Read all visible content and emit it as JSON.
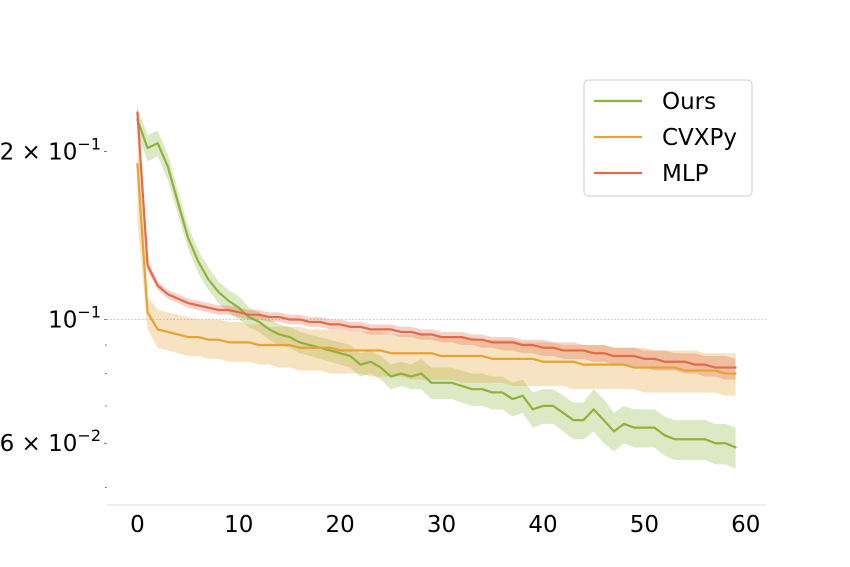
{
  "chart_data": {
    "type": "line",
    "title": "",
    "xlabel": "",
    "ylabel": "",
    "y_scale": "log",
    "xlim": [
      -3,
      62
    ],
    "ylim": [
      0.0465,
      0.26
    ],
    "grid": "dotted line at 10^-1 only",
    "legend_placement": "top-right",
    "x_ticks": [
      0,
      10,
      20,
      30,
      40,
      50,
      60
    ],
    "x_tick_labels": [
      "0",
      "10",
      "20",
      "30",
      "40",
      "50",
      "60"
    ],
    "y_ticks_major": [
      0.06,
      0.1,
      0.2
    ],
    "y_tick_labels": [
      {
        "mantissa": "6 × 10",
        "exponent": "−2"
      },
      {
        "mantissa": "10",
        "exponent": "−1"
      },
      {
        "mantissa": "2 × 10",
        "exponent": "−1"
      }
    ],
    "y_ticks_minor": [
      0.05,
      0.07,
      0.08,
      0.09
    ],
    "series": [
      {
        "name": "Ours",
        "color": "#8db33a",
        "x": [
          0,
          1,
          2,
          3,
          4,
          5,
          6,
          7,
          8,
          9,
          10,
          11,
          12,
          13,
          14,
          15,
          16,
          17,
          18,
          19,
          20,
          21,
          22,
          23,
          24,
          25,
          26,
          27,
          28,
          29,
          30,
          31,
          32,
          33,
          34,
          35,
          36,
          37,
          38,
          39,
          40,
          41,
          42,
          43,
          44,
          45,
          46,
          47,
          48,
          49,
          50,
          51,
          52,
          53,
          54,
          55,
          56,
          57,
          58,
          59
        ],
        "mean": [
          0.228,
          0.203,
          0.207,
          0.188,
          0.162,
          0.14,
          0.127,
          0.118,
          0.112,
          0.108,
          0.105,
          0.101,
          0.099,
          0.096,
          0.094,
          0.093,
          0.091,
          0.09,
          0.089,
          0.088,
          0.087,
          0.086,
          0.083,
          0.084,
          0.082,
          0.079,
          0.08,
          0.079,
          0.08,
          0.077,
          0.077,
          0.077,
          0.076,
          0.075,
          0.075,
          0.074,
          0.074,
          0.072,
          0.073,
          0.069,
          0.07,
          0.07,
          0.068,
          0.066,
          0.066,
          0.069,
          0.066,
          0.063,
          0.065,
          0.064,
          0.064,
          0.064,
          0.062,
          0.061,
          0.061,
          0.061,
          0.061,
          0.06,
          0.06,
          0.059
        ],
        "lower": [
          0.215,
          0.192,
          0.196,
          0.178,
          0.154,
          0.134,
          0.121,
          0.113,
          0.107,
          0.103,
          0.1,
          0.097,
          0.095,
          0.092,
          0.09,
          0.089,
          0.087,
          0.086,
          0.085,
          0.084,
          0.083,
          0.082,
          0.079,
          0.08,
          0.078,
          0.075,
          0.076,
          0.075,
          0.075,
          0.072,
          0.072,
          0.072,
          0.071,
          0.07,
          0.07,
          0.069,
          0.069,
          0.067,
          0.068,
          0.064,
          0.065,
          0.065,
          0.063,
          0.061,
          0.061,
          0.063,
          0.06,
          0.058,
          0.06,
          0.059,
          0.059,
          0.059,
          0.057,
          0.056,
          0.056,
          0.056,
          0.056,
          0.055,
          0.055,
          0.054
        ],
        "upper": [
          0.24,
          0.214,
          0.218,
          0.198,
          0.17,
          0.147,
          0.133,
          0.124,
          0.117,
          0.113,
          0.11,
          0.105,
          0.103,
          0.1,
          0.098,
          0.097,
          0.095,
          0.094,
          0.093,
          0.092,
          0.091,
          0.09,
          0.087,
          0.088,
          0.086,
          0.083,
          0.084,
          0.083,
          0.085,
          0.082,
          0.082,
          0.082,
          0.081,
          0.08,
          0.08,
          0.079,
          0.079,
          0.077,
          0.078,
          0.074,
          0.075,
          0.075,
          0.073,
          0.071,
          0.071,
          0.075,
          0.072,
          0.068,
          0.07,
          0.069,
          0.069,
          0.069,
          0.067,
          0.066,
          0.066,
          0.066,
          0.066,
          0.065,
          0.065,
          0.064
        ]
      },
      {
        "name": "CVXPy",
        "color": "#e6a333",
        "x": [
          0,
          1,
          2,
          3,
          4,
          5,
          6,
          7,
          8,
          9,
          10,
          11,
          12,
          13,
          14,
          15,
          16,
          17,
          18,
          19,
          20,
          21,
          22,
          23,
          24,
          25,
          26,
          27,
          28,
          29,
          30,
          31,
          32,
          33,
          34,
          35,
          36,
          37,
          38,
          39,
          40,
          41,
          42,
          43,
          44,
          45,
          46,
          47,
          48,
          49,
          50,
          51,
          52,
          53,
          54,
          55,
          56,
          57,
          58,
          59
        ],
        "mean": [
          0.19,
          0.103,
          0.096,
          0.095,
          0.094,
          0.093,
          0.093,
          0.092,
          0.092,
          0.091,
          0.091,
          0.091,
          0.09,
          0.09,
          0.09,
          0.09,
          0.089,
          0.089,
          0.089,
          0.089,
          0.088,
          0.088,
          0.088,
          0.088,
          0.088,
          0.087,
          0.087,
          0.087,
          0.087,
          0.087,
          0.086,
          0.086,
          0.086,
          0.086,
          0.086,
          0.085,
          0.085,
          0.085,
          0.085,
          0.085,
          0.084,
          0.084,
          0.084,
          0.084,
          0.083,
          0.083,
          0.083,
          0.083,
          0.083,
          0.082,
          0.082,
          0.082,
          0.082,
          0.082,
          0.081,
          0.081,
          0.081,
          0.081,
          0.08,
          0.08
        ],
        "lower": [
          0.15,
          0.096,
          0.089,
          0.088,
          0.087,
          0.086,
          0.086,
          0.085,
          0.085,
          0.084,
          0.084,
          0.084,
          0.083,
          0.083,
          0.082,
          0.082,
          0.081,
          0.081,
          0.081,
          0.08,
          0.08,
          0.08,
          0.08,
          0.079,
          0.079,
          0.079,
          0.079,
          0.078,
          0.078,
          0.078,
          0.078,
          0.078,
          0.077,
          0.077,
          0.077,
          0.077,
          0.077,
          0.076,
          0.076,
          0.076,
          0.076,
          0.076,
          0.076,
          0.075,
          0.075,
          0.075,
          0.075,
          0.075,
          0.075,
          0.075,
          0.074,
          0.074,
          0.074,
          0.074,
          0.074,
          0.074,
          0.074,
          0.074,
          0.073,
          0.073
        ],
        "upper": [
          0.245,
          0.11,
          0.104,
          0.103,
          0.102,
          0.101,
          0.1,
          0.1,
          0.1,
          0.099,
          0.099,
          0.098,
          0.098,
          0.097,
          0.097,
          0.097,
          0.097,
          0.096,
          0.096,
          0.096,
          0.096,
          0.095,
          0.095,
          0.095,
          0.095,
          0.094,
          0.094,
          0.094,
          0.094,
          0.093,
          0.093,
          0.093,
          0.093,
          0.093,
          0.092,
          0.092,
          0.092,
          0.092,
          0.091,
          0.091,
          0.091,
          0.091,
          0.09,
          0.09,
          0.09,
          0.09,
          0.09,
          0.089,
          0.089,
          0.089,
          0.089,
          0.088,
          0.088,
          0.088,
          0.088,
          0.088,
          0.087,
          0.087,
          0.087,
          0.087
        ]
      },
      {
        "name": "MLP",
        "color": "#e16b4a",
        "x": [
          0,
          1,
          2,
          3,
          4,
          5,
          6,
          7,
          8,
          9,
          10,
          11,
          12,
          13,
          14,
          15,
          16,
          17,
          18,
          19,
          20,
          21,
          22,
          23,
          24,
          25,
          26,
          27,
          28,
          29,
          30,
          31,
          32,
          33,
          34,
          35,
          36,
          37,
          38,
          39,
          40,
          41,
          42,
          43,
          44,
          45,
          46,
          47,
          48,
          49,
          50,
          51,
          52,
          53,
          54,
          55,
          56,
          57,
          58,
          59
        ],
        "mean": [
          0.235,
          0.125,
          0.115,
          0.111,
          0.109,
          0.107,
          0.106,
          0.105,
          0.104,
          0.104,
          0.103,
          0.102,
          0.102,
          0.101,
          0.101,
          0.1,
          0.1,
          0.099,
          0.099,
          0.098,
          0.098,
          0.097,
          0.097,
          0.096,
          0.096,
          0.096,
          0.095,
          0.095,
          0.094,
          0.094,
          0.093,
          0.093,
          0.093,
          0.092,
          0.092,
          0.091,
          0.091,
          0.091,
          0.09,
          0.09,
          0.089,
          0.089,
          0.088,
          0.088,
          0.088,
          0.087,
          0.087,
          0.086,
          0.086,
          0.086,
          0.085,
          0.085,
          0.084,
          0.084,
          0.084,
          0.083,
          0.083,
          0.082,
          0.082,
          0.082
        ],
        "lower": [
          0.228,
          0.122,
          0.113,
          0.109,
          0.107,
          0.105,
          0.104,
          0.103,
          0.102,
          0.102,
          0.101,
          0.1,
          0.1,
          0.099,
          0.099,
          0.098,
          0.098,
          0.097,
          0.097,
          0.096,
          0.096,
          0.095,
          0.095,
          0.094,
          0.094,
          0.094,
          0.093,
          0.093,
          0.092,
          0.092,
          0.091,
          0.091,
          0.09,
          0.09,
          0.089,
          0.089,
          0.088,
          0.088,
          0.087,
          0.087,
          0.086,
          0.086,
          0.085,
          0.085,
          0.085,
          0.084,
          0.084,
          0.083,
          0.083,
          0.082,
          0.082,
          0.081,
          0.081,
          0.081,
          0.08,
          0.08,
          0.079,
          0.079,
          0.078,
          0.078
        ],
        "upper": [
          0.242,
          0.128,
          0.117,
          0.113,
          0.111,
          0.109,
          0.108,
          0.107,
          0.106,
          0.106,
          0.105,
          0.104,
          0.104,
          0.103,
          0.103,
          0.102,
          0.102,
          0.101,
          0.101,
          0.1,
          0.1,
          0.099,
          0.099,
          0.098,
          0.098,
          0.098,
          0.097,
          0.097,
          0.096,
          0.096,
          0.095,
          0.095,
          0.095,
          0.094,
          0.094,
          0.093,
          0.093,
          0.093,
          0.092,
          0.092,
          0.092,
          0.091,
          0.091,
          0.091,
          0.09,
          0.09,
          0.09,
          0.089,
          0.089,
          0.089,
          0.088,
          0.088,
          0.088,
          0.087,
          0.087,
          0.087,
          0.086,
          0.086,
          0.086,
          0.085
        ]
      }
    ],
    "legend": {
      "entries": [
        "Ours",
        "CVXPy",
        "MLP"
      ]
    }
  }
}
